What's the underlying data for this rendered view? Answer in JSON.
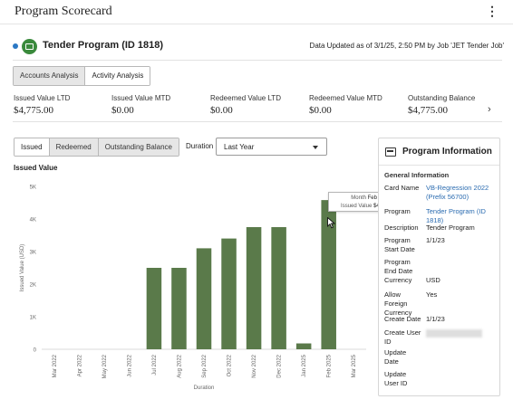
{
  "header": {
    "title": "Program Scorecard",
    "menu_icon": "kebab-menu-icon"
  },
  "program": {
    "name": "Tender Program (ID 1818)",
    "updated": "Data Updated as of 3/1/25, 2:50 PM by Job 'JET Tender Job'"
  },
  "tabs": [
    {
      "label": "Accounts Analysis",
      "selected": false
    },
    {
      "label": "Activity Analysis",
      "selected": true
    }
  ],
  "metrics": [
    {
      "label": "Issued Value LTD",
      "value": "$4,775.00"
    },
    {
      "label": "Issued Value MTD",
      "value": "$0.00"
    },
    {
      "label": "Redeemed Value LTD",
      "value": "$0.00"
    },
    {
      "label": "Redeemed Value MTD",
      "value": "$0.00"
    },
    {
      "label": "Outstanding Balance",
      "value": "$4,775.00"
    }
  ],
  "series_toggle": [
    {
      "label": "Issued",
      "selected": true
    },
    {
      "label": "Redeemed",
      "selected": false
    },
    {
      "label": "Outstanding Balance",
      "selected": false
    }
  ],
  "duration": {
    "label": "Duration",
    "value": "Last Year"
  },
  "chart_title": "Issued Value",
  "tooltip": {
    "month_label": "Month",
    "month_value": "Feb 2025",
    "value_label": "Issued Value",
    "value_value": "$4.58K"
  },
  "chart_data": {
    "type": "bar",
    "categories": [
      "Mar 2022",
      "Apr 2022",
      "May 2022",
      "Jun 2022",
      "Jul 2022",
      "Aug 2022",
      "Sep 2022",
      "Oct 2022",
      "Nov 2022",
      "Dec 2022",
      "Jan 2025",
      "Feb 2025",
      "Mar 2025"
    ],
    "values": [
      0,
      0,
      0,
      0,
      2500,
      2500,
      3100,
      3400,
      3750,
      3750,
      180,
      4580,
      0
    ],
    "title": "Issued Value",
    "xlabel": "Duration",
    "ylabel": "Issued Value (USD)",
    "ylim": [
      0,
      5000
    ],
    "yticks": [
      0,
      1000,
      2000,
      3000,
      4000,
      5000
    ],
    "ytick_labels": [
      "0",
      "1K",
      "2K",
      "3K",
      "4K",
      "5K"
    ],
    "bar_color": "#5a7a4a",
    "grid": false
  },
  "info_panel": {
    "title": "Program Information",
    "section": "General Information",
    "fields": [
      {
        "key": "Card Name",
        "value": "VB-Regression 2022 (Prefix 56700)",
        "link": true
      },
      {
        "key": "Program",
        "value": "Tender Program (ID 1818)",
        "link": true
      },
      {
        "key": "Description",
        "value": "Tender Program",
        "link": false
      },
      {
        "key": "Program Start Date",
        "value": "1/1/23",
        "link": false
      },
      {
        "key": "Program End Date",
        "value": "",
        "link": false
      },
      {
        "key": "Currency",
        "value": "USD",
        "link": false
      },
      {
        "key": "Allow Foreign Currency",
        "value": "Yes",
        "link": false
      },
      {
        "key": "Create Date",
        "value": "1/1/23",
        "link": false
      },
      {
        "key": "Create User ID",
        "value": "",
        "link": false,
        "redacted": true
      },
      {
        "key": "Update Date",
        "value": "",
        "link": false
      },
      {
        "key": "Update User ID",
        "value": "",
        "link": false
      }
    ]
  },
  "colors": {
    "accent": "#2a6bb0",
    "bar": "#5a7a4a",
    "program_icon": "#3a8a3c",
    "status_dot": "#2b78c4"
  }
}
